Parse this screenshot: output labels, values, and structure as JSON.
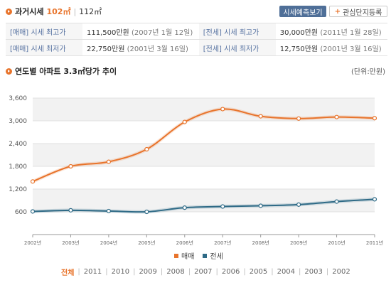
{
  "header": {
    "title": "과거시세",
    "size_primary": "102㎡",
    "separator": "|",
    "size_secondary": "112㎡",
    "forecast_button": "시세예측보기",
    "favorite_button": "관심단지등록"
  },
  "price_table": [
    [
      {
        "label": "[매매] 시세 최고가",
        "value": "111,500만원",
        "date": "(2007년 1월 12일)"
      },
      {
        "label": "[전세] 시세 최고가",
        "value": "30,000만원",
        "date": "(2011년 1월 28일)"
      }
    ],
    [
      {
        "label": "[매매] 시세 최저가",
        "value": "22,750만원",
        "date": "(2001년 3월 16일)"
      },
      {
        "label": "[전세] 시세 최저가",
        "value": "12,750만원",
        "date": "(2001년 3월 16일)"
      }
    ]
  ],
  "section": {
    "title": "연도별 아파트 3.3㎡당가 추이",
    "unit": "(단위:만원)"
  },
  "chart_data": {
    "type": "line",
    "x": [
      "2002년",
      "2003년",
      "2004년",
      "2005년",
      "2006년",
      "2007년",
      "2008년",
      "2009년",
      "2010년",
      "2011년"
    ],
    "ylim": [
      0,
      3600
    ],
    "yticks": [
      "3,600",
      "3,000",
      "2,400",
      "1,800",
      "1,200",
      "600"
    ],
    "ytick_values": [
      3600,
      3000,
      2400,
      1800,
      1200,
      600
    ],
    "series": [
      {
        "name": "매매",
        "color": "#e8742c",
        "values": [
          1400,
          1800,
          1920,
          2250,
          2970,
          3310,
          3120,
          3060,
          3100,
          3070
        ]
      },
      {
        "name": "전세",
        "color": "#2e6a86",
        "values": [
          610,
          640,
          620,
          600,
          710,
          740,
          760,
          790,
          870,
          930
        ]
      }
    ],
    "grid": true,
    "legend": "bottom-center"
  },
  "years_nav": {
    "all": "전체",
    "items": [
      "2011",
      "2010",
      "2009",
      "2008",
      "2007",
      "2006",
      "2005",
      "2004",
      "2003",
      "2002"
    ]
  }
}
